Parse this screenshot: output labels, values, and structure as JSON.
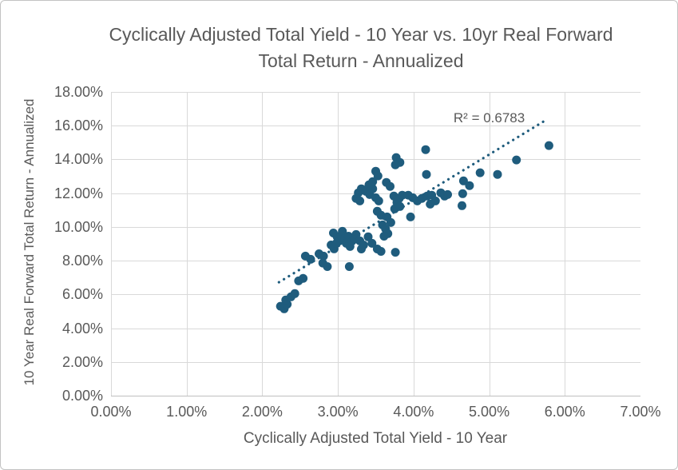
{
  "chart_data": {
    "type": "scatter",
    "title": "Cyclically Adjusted Total Yield - 10 Year vs. 10yr Real Forward Total Return - Annualized",
    "xlabel": "Cyclically Adjusted Total Yield - 10 Year",
    "ylabel": "10 Year Real Forward Total Return - Annualized",
    "units": "percent",
    "grid": true,
    "legend": "none",
    "x_axis": {
      "min": 0,
      "max": 7,
      "tick_step": 1,
      "tick_labels": [
        "0.00%",
        "1.00%",
        "2.00%",
        "3.00%",
        "4.00%",
        "5.00%",
        "6.00%",
        "7.00%"
      ]
    },
    "y_axis": {
      "min": 0,
      "max": 18,
      "tick_step": 2,
      "tick_labels": [
        "0.00%",
        "2.00%",
        "4.00%",
        "6.00%",
        "8.00%",
        "10.00%",
        "12.00%",
        "14.00%",
        "16.00%",
        "18.00%"
      ]
    },
    "points": [
      [
        2.24,
        5.3
      ],
      [
        2.29,
        5.15
      ],
      [
        2.33,
        5.42
      ],
      [
        2.31,
        5.67
      ],
      [
        2.38,
        5.86
      ],
      [
        2.43,
        6.05
      ],
      [
        2.48,
        6.8
      ],
      [
        2.54,
        6.95
      ],
      [
        2.57,
        8.27
      ],
      [
        2.64,
        8.08
      ],
      [
        2.75,
        8.41
      ],
      [
        2.81,
        8.27
      ],
      [
        2.8,
        7.86
      ],
      [
        2.86,
        7.65
      ],
      [
        3.15,
        7.65
      ],
      [
        2.91,
        8.93
      ],
      [
        2.95,
        8.7
      ],
      [
        2.94,
        9.64
      ],
      [
        2.99,
        9.41
      ],
      [
        3.02,
        9.17
      ],
      [
        2.98,
        9.03
      ],
      [
        3.06,
        9.74
      ],
      [
        3.04,
        9.5
      ],
      [
        3.09,
        9.31
      ],
      [
        3.14,
        9.45
      ],
      [
        3.19,
        9.17
      ],
      [
        3.22,
        9.31
      ],
      [
        3.11,
        9.03
      ],
      [
        3.16,
        8.84
      ],
      [
        3.24,
        9.55
      ],
      [
        3.29,
        9.17
      ],
      [
        3.34,
        8.93
      ],
      [
        3.4,
        9.41
      ],
      [
        3.45,
        9.03
      ],
      [
        3.31,
        8.69
      ],
      [
        3.52,
        8.69
      ],
      [
        3.57,
        8.55
      ],
      [
        3.76,
        8.5
      ],
      [
        3.59,
        10.12
      ],
      [
        3.63,
        9.88
      ],
      [
        3.66,
        9.6
      ],
      [
        3.61,
        9.45
      ],
      [
        3.52,
        10.93
      ],
      [
        3.57,
        10.69
      ],
      [
        3.65,
        10.59
      ],
      [
        3.7,
        10.26
      ],
      [
        3.96,
        10.59
      ],
      [
        3.75,
        11.07
      ],
      [
        3.27,
        12.02
      ],
      [
        3.31,
        12.26
      ],
      [
        3.37,
        12.11
      ],
      [
        3.24,
        11.69
      ],
      [
        3.29,
        11.54
      ],
      [
        3.42,
        11.92
      ],
      [
        3.46,
        12.26
      ],
      [
        3.5,
        11.73
      ],
      [
        3.54,
        11.54
      ],
      [
        3.41,
        12.49
      ],
      [
        3.46,
        12.68
      ],
      [
        3.64,
        12.64
      ],
      [
        3.69,
        12.4
      ],
      [
        3.5,
        13.3
      ],
      [
        3.53,
        13.02
      ],
      [
        3.77,
        14.11
      ],
      [
        3.82,
        13.82
      ],
      [
        3.76,
        13.68
      ],
      [
        3.74,
        11.83
      ],
      [
        3.81,
        11.69
      ],
      [
        3.85,
        11.88
      ],
      [
        3.93,
        11.88
      ],
      [
        3.99,
        11.73
      ],
      [
        4.05,
        11.54
      ],
      [
        4.11,
        11.69
      ],
      [
        4.18,
        11.83
      ],
      [
        4.24,
        11.88
      ],
      [
        4.29,
        11.54
      ],
      [
        3.78,
        11.45
      ],
      [
        3.82,
        11.21
      ],
      [
        4.36,
        12.02
      ],
      [
        4.41,
        11.83
      ],
      [
        4.45,
        11.92
      ],
      [
        4.22,
        11.35
      ],
      [
        4.16,
        14.58
      ],
      [
        4.17,
        13.11
      ],
      [
        4.66,
        12.73
      ],
      [
        4.74,
        12.45
      ],
      [
        4.65,
        11.97
      ],
      [
        4.64,
        11.26
      ],
      [
        4.88,
        13.21
      ],
      [
        5.11,
        13.11
      ],
      [
        5.36,
        13.97
      ],
      [
        5.79,
        14.82
      ]
    ],
    "trendline": {
      "style": "dotted",
      "x_start": 2.22,
      "y_start": 6.72,
      "x_end": 5.76,
      "y_end": 16.36,
      "r_squared": 0.6783,
      "label": "R² = 0.6783",
      "label_x": 5.0,
      "label_y": 16.45
    },
    "colors": {
      "marker": "#1f5c7d",
      "trendline": "#1f5c7d",
      "gridline": "#d9d9d9",
      "axis_line": "#bfbfbf",
      "text": "#595959"
    }
  }
}
